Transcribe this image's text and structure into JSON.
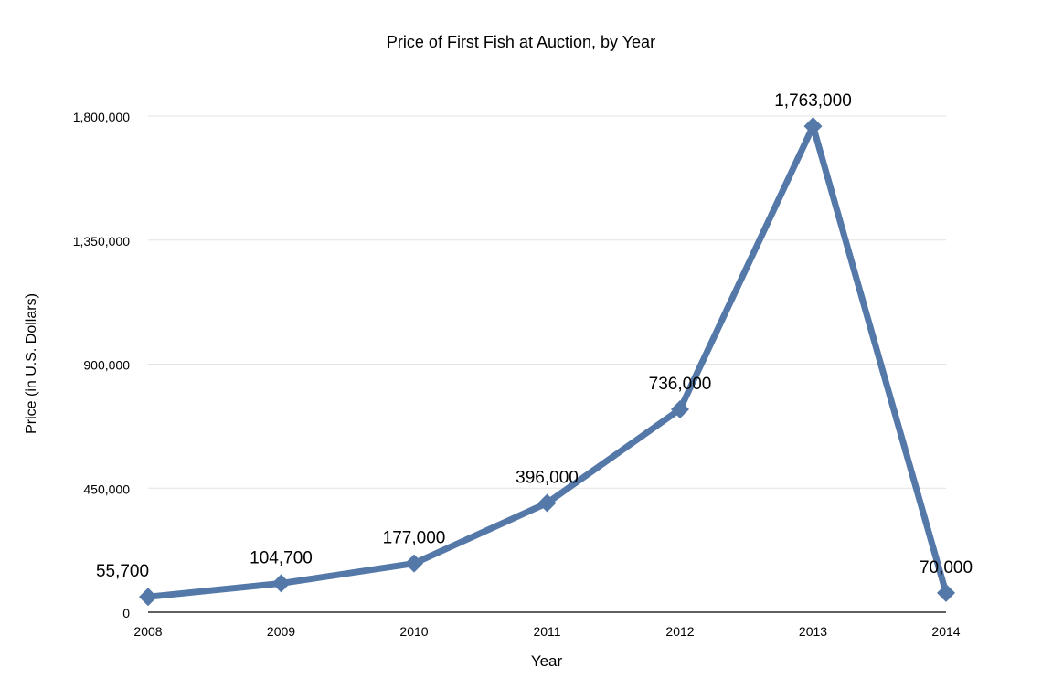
{
  "chart_data": {
    "type": "line",
    "title": "Price of First Fish at Auction, by Year",
    "xlabel": "Year",
    "ylabel": "Price (in U.S. Dollars)",
    "categories": [
      "2008",
      "2009",
      "2010",
      "2011",
      "2012",
      "2013",
      "2014"
    ],
    "values": [
      55700,
      104700,
      177000,
      396000,
      736000,
      1763000,
      70000
    ],
    "data_labels": [
      "55,700",
      "104,700",
      "177,000",
      "396,000",
      "736,000",
      "1,763,000",
      "70,000"
    ],
    "ylim": [
      0,
      1800000
    ],
    "yticks": [
      0,
      450000,
      900000,
      1350000,
      1800000
    ],
    "ytick_labels": [
      "0",
      "450,000",
      "900,000",
      "1,350,000",
      "1,800,000"
    ],
    "grid": true,
    "marker": "diamond",
    "line_color": "#5478a8"
  }
}
